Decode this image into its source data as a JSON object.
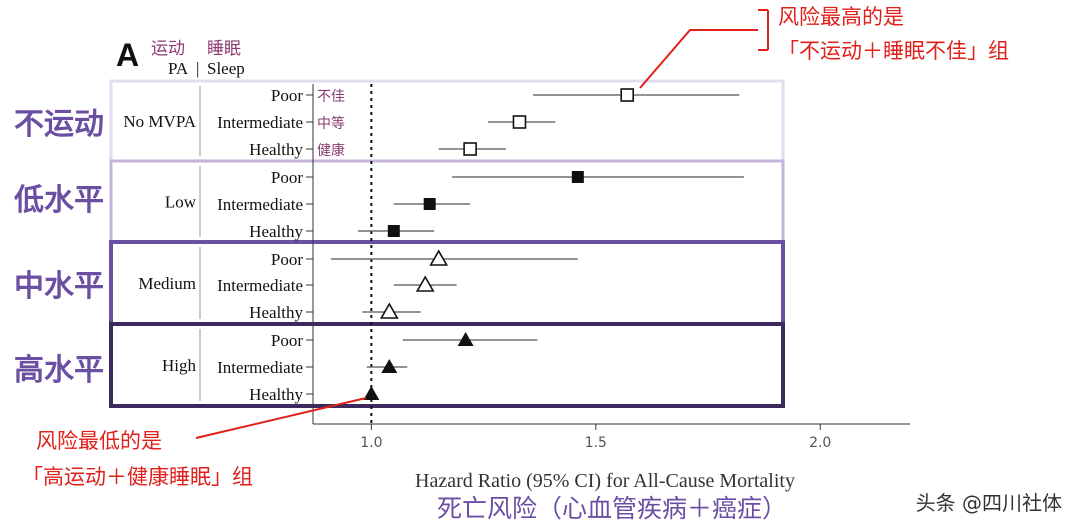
{
  "panel_letter": "A",
  "header": {
    "pa_cn": "运动",
    "sleep_cn": "睡眠",
    "pa_en": "PA",
    "sep": "|",
    "sleep_en": "Sleep"
  },
  "group_labels_cn": [
    "不运动",
    "低水平",
    "中水平",
    "高水平"
  ],
  "sleep_labels_cn": [
    "不佳",
    "中等",
    "健康"
  ],
  "annotation_top": {
    "line1": "风险最高的是",
    "line2": "「不运动＋睡眠不佳」组"
  },
  "annotation_bottom": {
    "line1": "风险最低的是",
    "line2": "「高运动＋健康睡眠」组"
  },
  "xlabel_cn": "死亡风险（心血管疾病＋癌症）",
  "watermark": "头条 @四川社体",
  "colors": {
    "no_mvpa_box": "#e2dcee",
    "low_box": "#c3b5dc",
    "medium_box": "#6a4fa3",
    "high_box": "#3c2a5e",
    "group_text": "#6a4fa3",
    "annotation": "#e0201b",
    "cn_sublabel": "#8d3b72"
  },
  "chart_data": {
    "type": "forest",
    "title": "",
    "xlabel": "Hazard Ratio (95% CI) for All-Cause Mortality",
    "ylabel": "",
    "xlim": [
      0.87,
      2.2
    ],
    "xticks": [
      1.0,
      1.5,
      2.0
    ],
    "xtick_labels": [
      "1.0",
      "1.5",
      "2.0"
    ],
    "reference_line": 1.0,
    "groups": [
      {
        "name": "No MVPA",
        "marker": "open-square",
        "rows": [
          {
            "sleep": "Poor",
            "hr": 1.57,
            "lo": 1.36,
            "hi": 1.82
          },
          {
            "sleep": "Intermediate",
            "hr": 1.33,
            "lo": 1.26,
            "hi": 1.41
          },
          {
            "sleep": "Healthy",
            "hr": 1.22,
            "lo": 1.15,
            "hi": 1.3
          }
        ]
      },
      {
        "name": "Low",
        "marker": "filled-square",
        "rows": [
          {
            "sleep": "Poor",
            "hr": 1.46,
            "lo": 1.18,
            "hi": 1.83
          },
          {
            "sleep": "Intermediate",
            "hr": 1.13,
            "lo": 1.05,
            "hi": 1.22
          },
          {
            "sleep": "Healthy",
            "hr": 1.05,
            "lo": 0.97,
            "hi": 1.14
          }
        ]
      },
      {
        "name": "Medium",
        "marker": "open-triangle",
        "rows": [
          {
            "sleep": "Poor",
            "hr": 1.15,
            "lo": 0.91,
            "hi": 1.46
          },
          {
            "sleep": "Intermediate",
            "hr": 1.12,
            "lo": 1.05,
            "hi": 1.19
          },
          {
            "sleep": "Healthy",
            "hr": 1.04,
            "lo": 0.98,
            "hi": 1.11
          }
        ]
      },
      {
        "name": "High",
        "marker": "filled-triangle",
        "rows": [
          {
            "sleep": "Poor",
            "hr": 1.21,
            "lo": 1.07,
            "hi": 1.37
          },
          {
            "sleep": "Intermediate",
            "hr": 1.04,
            "lo": 0.99,
            "hi": 1.08
          },
          {
            "sleep": "Healthy",
            "hr": 1.0,
            "lo": 1.0,
            "hi": 1.0
          }
        ]
      }
    ]
  }
}
